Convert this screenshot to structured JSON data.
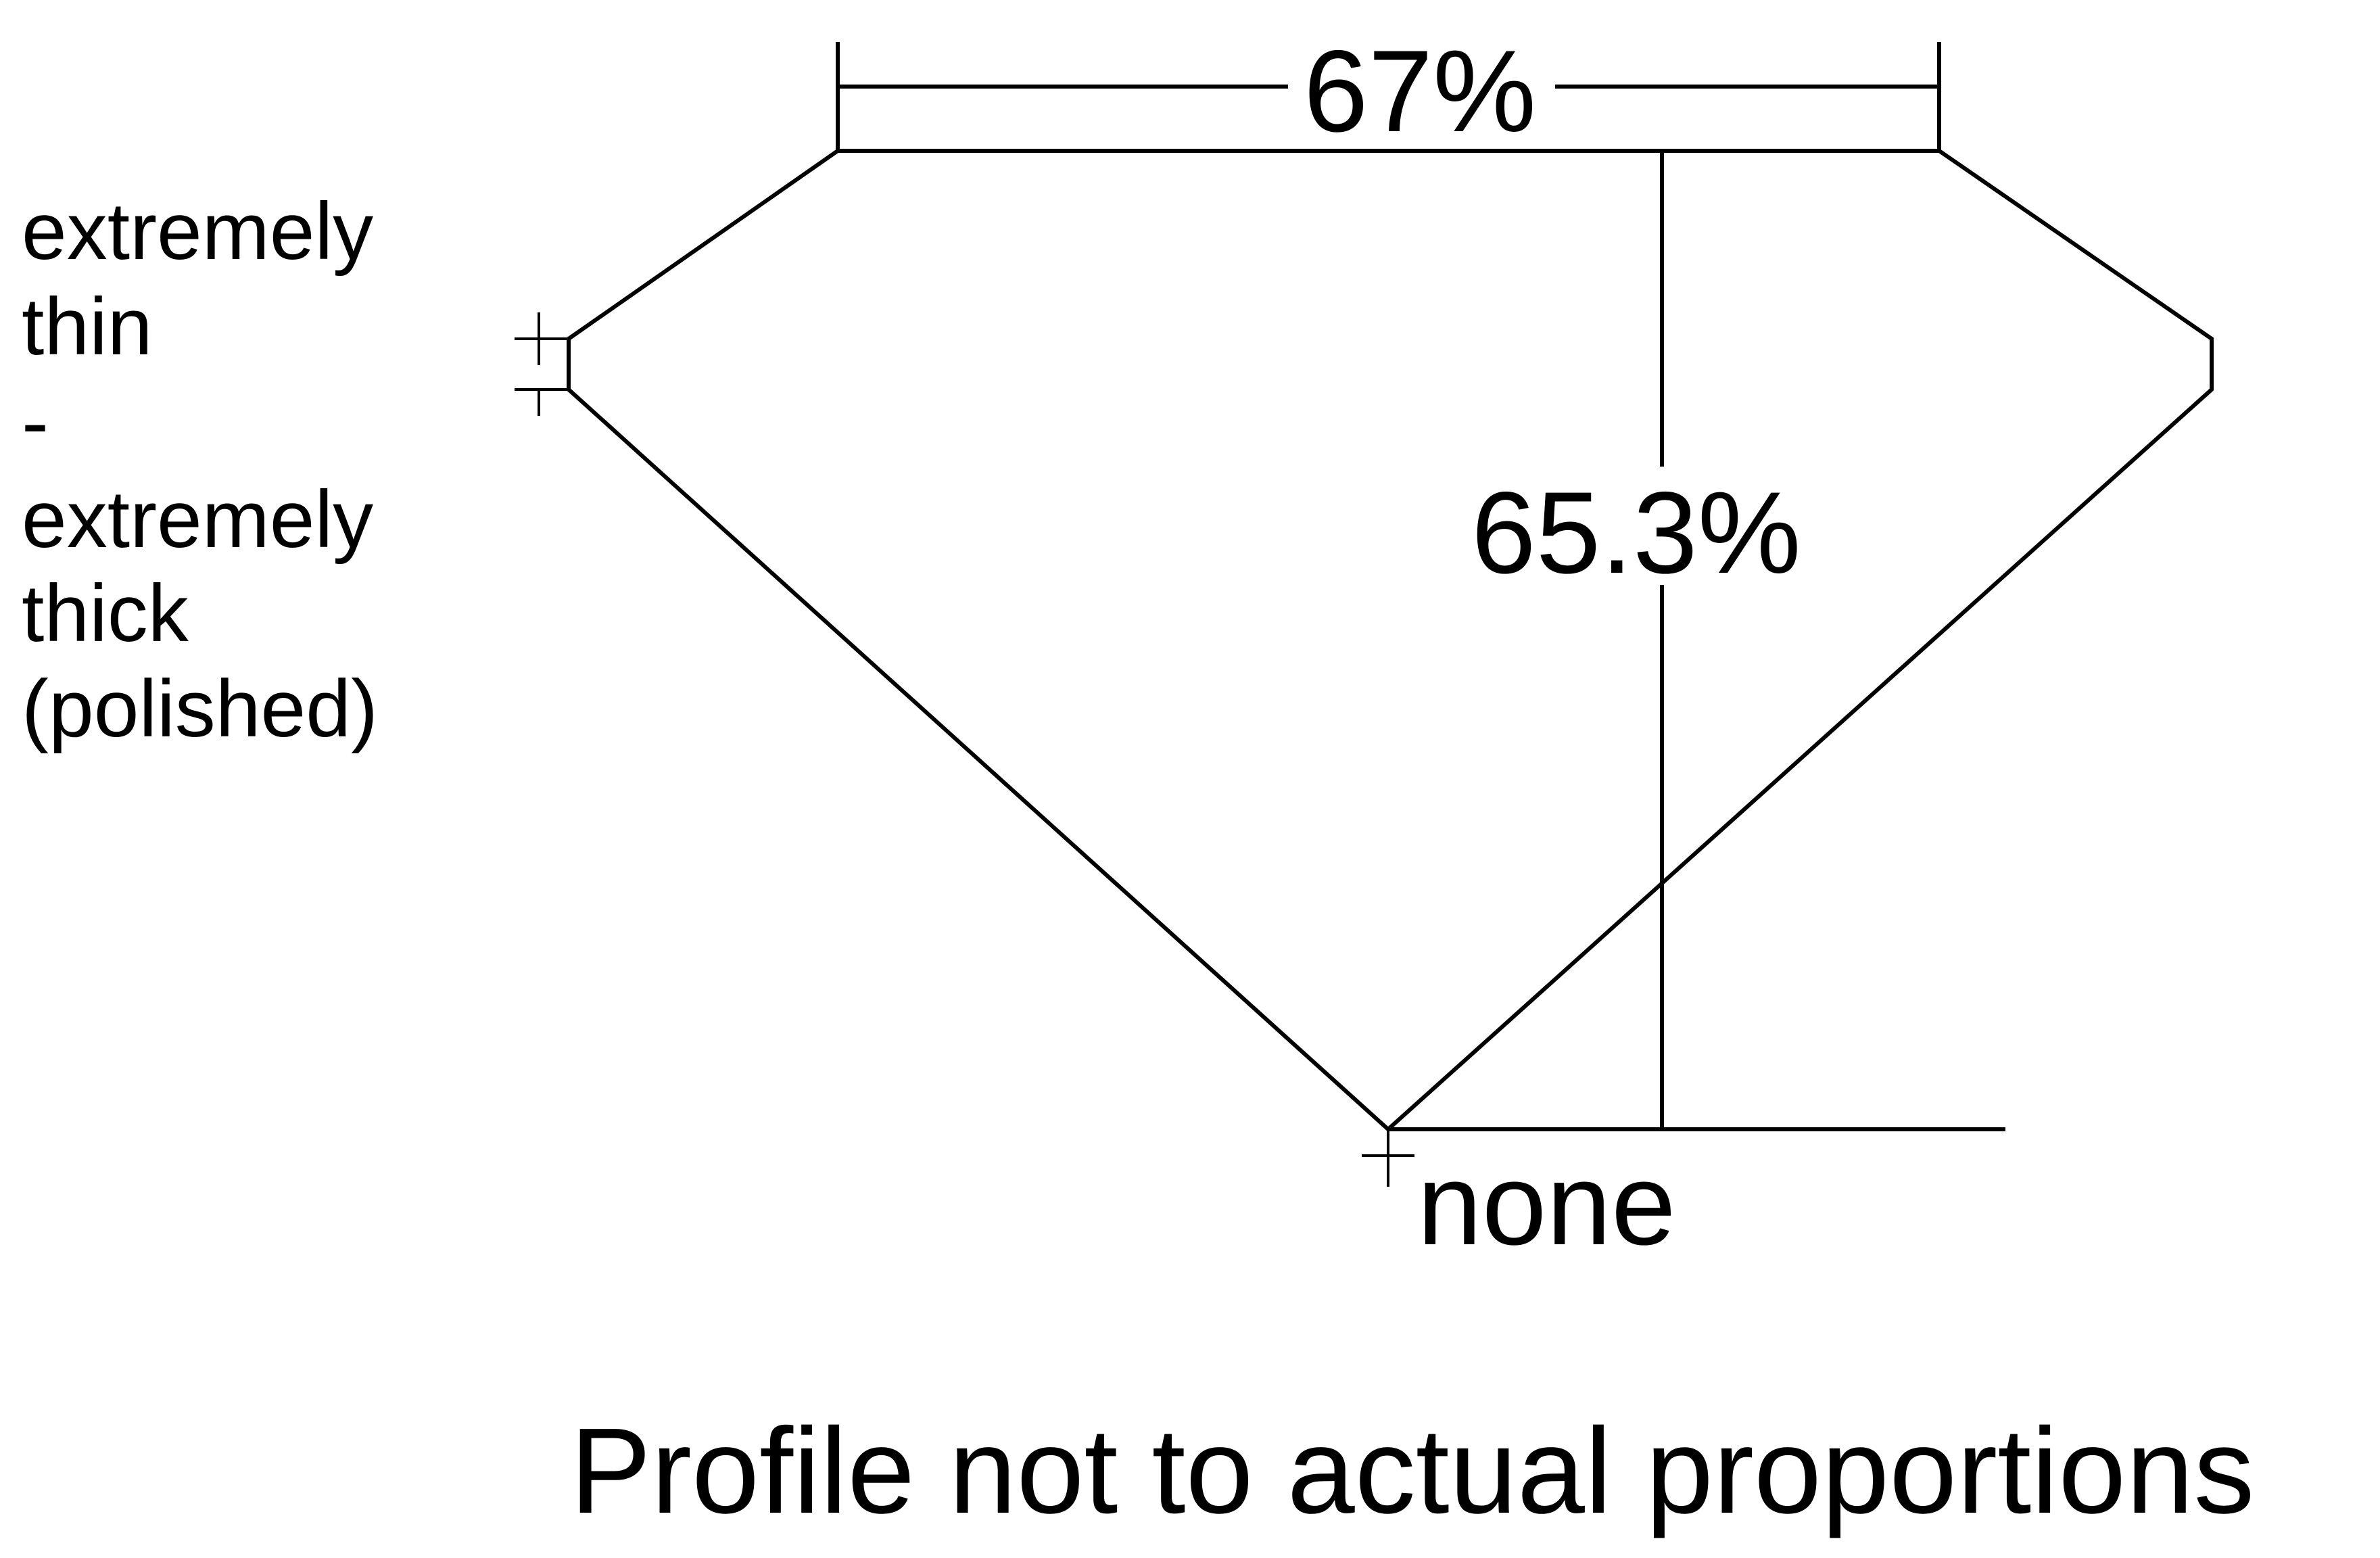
{
  "diagram": {
    "table_percentage": "67%",
    "total_depth_percentage": "65.3%",
    "girdle_label_lines": [
      "extremely",
      "thin",
      "-",
      "extremely",
      "thick",
      "(polished)"
    ],
    "culet_label": "none",
    "footnote": "Profile not to actual proportions",
    "line_color": "#000000",
    "background_color": "#ffffff"
  }
}
